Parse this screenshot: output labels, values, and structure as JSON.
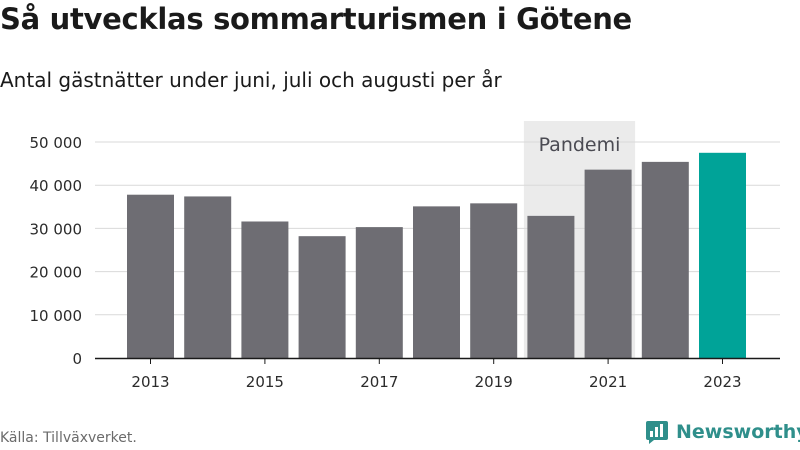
{
  "header": {
    "title": "Så utvecklas sommarturismen i Götene",
    "subtitle": "Antal gästnätter under juni, juli och augusti per år"
  },
  "footer": {
    "source": "Källa: Tillväxverket.",
    "brand": "Newsworthy"
  },
  "colors": {
    "bar": "#6e6d73",
    "highlight": "#00a398",
    "shade": "#ebebeb",
    "brand": "#2f8f8b"
  },
  "chart_data": {
    "type": "bar",
    "categories": [
      "2013",
      "2014",
      "2015",
      "2016",
      "2017",
      "2018",
      "2019",
      "2020",
      "2021",
      "2022",
      "2023"
    ],
    "values": [
      37800,
      37400,
      31600,
      28200,
      30300,
      35100,
      35800,
      32900,
      43600,
      45400,
      47500
    ],
    "tick_labels_x": [
      "2013",
      "2015",
      "2017",
      "2019",
      "2021",
      "2023"
    ],
    "tick_labels_y": [
      "0",
      "10 000",
      "20 000",
      "30 000",
      "40 000",
      "50 000"
    ],
    "ylim": [
      0,
      50000
    ],
    "highlight_category": "2023",
    "annotation": {
      "label": "Pandemi",
      "from": "2020",
      "to": "2021"
    },
    "grid": true
  }
}
